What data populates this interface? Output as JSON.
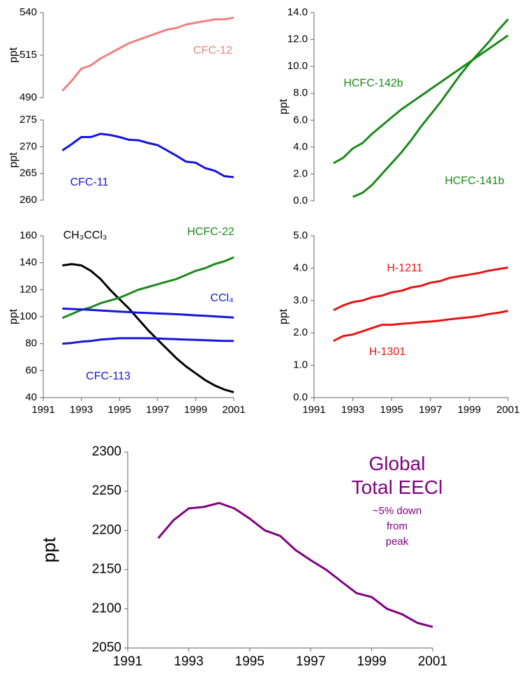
{
  "chart_data": [
    {
      "type": "line",
      "ylabel": "ppt",
      "xlim": [
        1991,
        2001
      ],
      "ylim": [
        490,
        540
      ],
      "yticks": [
        490,
        515,
        540
      ],
      "x": [
        1992,
        1992.5,
        1993,
        1993.5,
        1994,
        1994.5,
        1995,
        1995.5,
        1996,
        1996.5,
        1997,
        1997.5,
        1998,
        1998.5,
        1999,
        1999.5,
        2000,
        2000.5,
        2001
      ],
      "series": [
        {
          "name": "CFC-12",
          "color": "#f08080",
          "values": [
            494,
            500,
            507,
            509,
            513,
            516,
            519,
            522,
            524,
            526,
            528,
            530,
            531,
            533,
            534,
            535,
            536,
            536,
            537
          ]
        }
      ]
    },
    {
      "type": "line",
      "ylabel": "ppt",
      "xlim": [
        1991,
        2001
      ],
      "ylim": [
        260,
        275
      ],
      "yticks": [
        260,
        265,
        270,
        275
      ],
      "x": [
        1992,
        1992.5,
        1993,
        1993.5,
        1994,
        1994.5,
        1995,
        1995.5,
        1996,
        1996.5,
        1997,
        1997.5,
        1998,
        1998.5,
        1999,
        1999.5,
        2000,
        2000.5,
        2001
      ],
      "series": [
        {
          "name": "CFC-11",
          "color": "#1414e0",
          "values": [
            269.3,
            270.5,
            271.8,
            271.8,
            272.4,
            272.2,
            271.8,
            271.3,
            271.2,
            270.7,
            270.3,
            269.3,
            268.3,
            267.2,
            267.0,
            266.0,
            265.5,
            264.5,
            264.3
          ]
        }
      ]
    },
    {
      "type": "line",
      "ylabel": "ppt",
      "xlim": [
        1991,
        2001
      ],
      "ylim": [
        0,
        14
      ],
      "yticks": [
        {
          "value": 0,
          "label": "0.0"
        },
        {
          "value": 2,
          "label": "2.0"
        },
        {
          "value": 4,
          "label": "4.0"
        },
        {
          "value": 6,
          "label": "6.0"
        },
        {
          "value": 8,
          "label": "8.0"
        },
        {
          "value": 10,
          "label": "10.0"
        },
        {
          "value": 12,
          "label": "12.0"
        },
        {
          "value": 14,
          "label": "14.0"
        }
      ],
      "x": [
        1992,
        1992.5,
        1993,
        1993.5,
        1994,
        1994.5,
        1995,
        1995.5,
        1996,
        1996.5,
        1997,
        1997.5,
        1998,
        1998.5,
        1999,
        1999.5,
        2000,
        2000.5,
        2001
      ],
      "series": [
        {
          "name": "HCFC-142b",
          "color": "#1a8a1a",
          "values": [
            2.8,
            3.2,
            3.9,
            4.3,
            5.0,
            5.6,
            6.2,
            6.8,
            7.3,
            7.8,
            8.3,
            8.8,
            9.3,
            9.8,
            10.3,
            10.8,
            11.3,
            11.8,
            12.3
          ]
        },
        {
          "name": "HCFC-141b",
          "color": "#1a8a1a",
          "values": [
            null,
            null,
            0.3,
            0.6,
            1.2,
            2.0,
            2.8,
            3.6,
            4.5,
            5.5,
            6.4,
            7.3,
            8.3,
            9.3,
            10.2,
            11.0,
            11.8,
            12.7,
            13.5
          ]
        }
      ]
    },
    {
      "type": "line",
      "ylabel": "ppt",
      "xlim": [
        1991,
        2001
      ],
      "xticks": [
        1991,
        1993,
        1995,
        1997,
        1999,
        2001
      ],
      "ylim": [
        40,
        160
      ],
      "yticks": [
        40,
        60,
        80,
        100,
        120,
        140,
        160
      ],
      "x": [
        1992,
        1992.5,
        1993,
        1993.5,
        1994,
        1994.5,
        1995,
        1995.5,
        1996,
        1996.5,
        1997,
        1997.5,
        1998,
        1998.5,
        1999,
        1999.5,
        2000,
        2000.5,
        2001
      ],
      "series": [
        {
          "name": "CH₃CCl₃",
          "color": "#000000",
          "values": [
            138,
            139,
            138,
            134,
            128,
            120,
            113,
            106,
            98,
            90,
            83,
            76,
            69,
            63,
            58,
            53,
            49,
            46,
            44
          ]
        },
        {
          "name": "HCFC-22",
          "color": "#1a8a1a",
          "values": [
            99,
            102,
            105,
            107,
            110,
            112,
            114,
            117,
            120,
            122,
            124,
            126,
            128,
            131,
            134,
            136,
            139,
            141,
            144
          ]
        },
        {
          "name": "CCl₄",
          "color": "#1414e0",
          "values": [
            106,
            105.7,
            105.4,
            105,
            104.6,
            104.2,
            103.8,
            103.4,
            103,
            102.7,
            102.4,
            102.1,
            101.8,
            101.4,
            101,
            100.6,
            100.2,
            99.8,
            99.4
          ]
        },
        {
          "name": "CFC-113",
          "color": "#1414e0",
          "values": [
            80,
            80.5,
            81.5,
            82,
            83,
            83.5,
            84,
            84,
            84,
            84,
            83.8,
            83.5,
            83.3,
            83,
            82.8,
            82.5,
            82.3,
            82,
            82
          ]
        }
      ]
    },
    {
      "type": "line",
      "ylabel": "ppt",
      "xlim": [
        1991,
        2001
      ],
      "xticks": [
        1991,
        1993,
        1995,
        1997,
        1999,
        2001
      ],
      "ylim": [
        0,
        5
      ],
      "yticks": [
        {
          "value": 0,
          "label": "0.0"
        },
        {
          "value": 1,
          "label": "1.0"
        },
        {
          "value": 2,
          "label": "2.0"
        },
        {
          "value": 3,
          "label": "3.0"
        },
        {
          "value": 4,
          "label": "4.0"
        },
        {
          "value": 5,
          "label": "5.0"
        }
      ],
      "x": [
        1992,
        1992.5,
        1993,
        1993.5,
        1994,
        1994.5,
        1995,
        1995.5,
        1996,
        1996.5,
        1997,
        1997.5,
        1998,
        1998.5,
        1999,
        1999.5,
        2000,
        2000.5,
        2001
      ],
      "series": [
        {
          "name": "H-1211",
          "color": "#e81414",
          "values": [
            2.7,
            2.85,
            2.95,
            3.0,
            3.1,
            3.15,
            3.25,
            3.3,
            3.4,
            3.45,
            3.55,
            3.6,
            3.7,
            3.75,
            3.8,
            3.85,
            3.92,
            3.97,
            4.02
          ]
        },
        {
          "name": "H-1301",
          "color": "#e81414",
          "values": [
            1.75,
            1.9,
            1.95,
            2.05,
            2.15,
            2.25,
            2.25,
            2.28,
            2.3,
            2.33,
            2.35,
            2.38,
            2.42,
            2.45,
            2.48,
            2.52,
            2.58,
            2.62,
            2.68
          ]
        }
      ]
    },
    {
      "type": "line",
      "title": "Global Total EECl",
      "annotations": [
        "~5% down",
        "from",
        "peak"
      ],
      "ylabel": "ppt",
      "xlim": [
        1991,
        2001
      ],
      "xticks": [
        1991,
        1993,
        1995,
        1997,
        1999,
        2001
      ],
      "ylim": [
        2050,
        2300
      ],
      "yticks": [
        2050,
        2100,
        2150,
        2200,
        2250,
        2300
      ],
      "x": [
        1992,
        1992.5,
        1993,
        1993.5,
        1994,
        1994.5,
        1995,
        1995.5,
        1996,
        1996.5,
        1997,
        1997.5,
        1998,
        1998.5,
        1999,
        1999.5,
        2000,
        2000.5,
        2001
      ],
      "series": [
        {
          "name": "EECl",
          "color": "#800080",
          "values": [
            2190,
            2213,
            2228,
            2230,
            2235,
            2228,
            2215,
            2200,
            2193,
            2175,
            2162,
            2150,
            2135,
            2120,
            2115,
            2100,
            2093,
            2082,
            2077
          ]
        }
      ]
    }
  ]
}
